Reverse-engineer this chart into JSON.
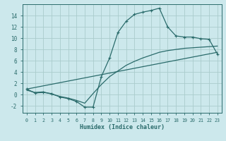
{
  "xlabel": "Humidex (Indice chaleur)",
  "bg_color": "#cce8ec",
  "grid_color": "#aacccc",
  "line_color": "#2a6b6b",
  "xlim": [
    -0.5,
    23.5
  ],
  "ylim": [
    -3.2,
    16.0
  ],
  "xticks": [
    0,
    1,
    2,
    3,
    4,
    5,
    6,
    7,
    8,
    9,
    10,
    11,
    12,
    13,
    14,
    15,
    16,
    17,
    18,
    19,
    20,
    21,
    22,
    23
  ],
  "yticks": [
    -2,
    0,
    2,
    4,
    6,
    8,
    10,
    12,
    14
  ],
  "curve1_x": [
    0,
    1,
    2,
    3,
    4,
    5,
    6,
    7,
    8,
    9,
    10,
    11,
    12,
    13,
    14,
    15,
    16,
    17,
    18,
    19,
    20,
    21,
    22,
    23
  ],
  "curve1_y": [
    1.0,
    0.3,
    0.4,
    0.2,
    -0.4,
    -0.7,
    -1.2,
    -2.2,
    -2.2,
    3.2,
    6.5,
    11.0,
    13.0,
    14.2,
    14.6,
    14.9,
    15.3,
    12.0,
    10.4,
    10.2,
    10.2,
    9.9,
    9.8,
    7.2
  ],
  "curve2_x": [
    0,
    23
  ],
  "curve2_y": [
    1.0,
    7.5
  ],
  "curve3_x": [
    0,
    1,
    2,
    3,
    4,
    5,
    6,
    7,
    8,
    9,
    10,
    11,
    12,
    13,
    14,
    15,
    16,
    17,
    18,
    19,
    20,
    21,
    22,
    23
  ],
  "curve3_y": [
    0.8,
    0.4,
    0.5,
    0.1,
    -0.3,
    -0.6,
    -1.0,
    -1.5,
    0.2,
    1.8,
    3.2,
    4.2,
    5.2,
    5.9,
    6.5,
    7.0,
    7.5,
    7.8,
    8.0,
    8.2,
    8.3,
    8.4,
    8.5,
    8.6
  ]
}
